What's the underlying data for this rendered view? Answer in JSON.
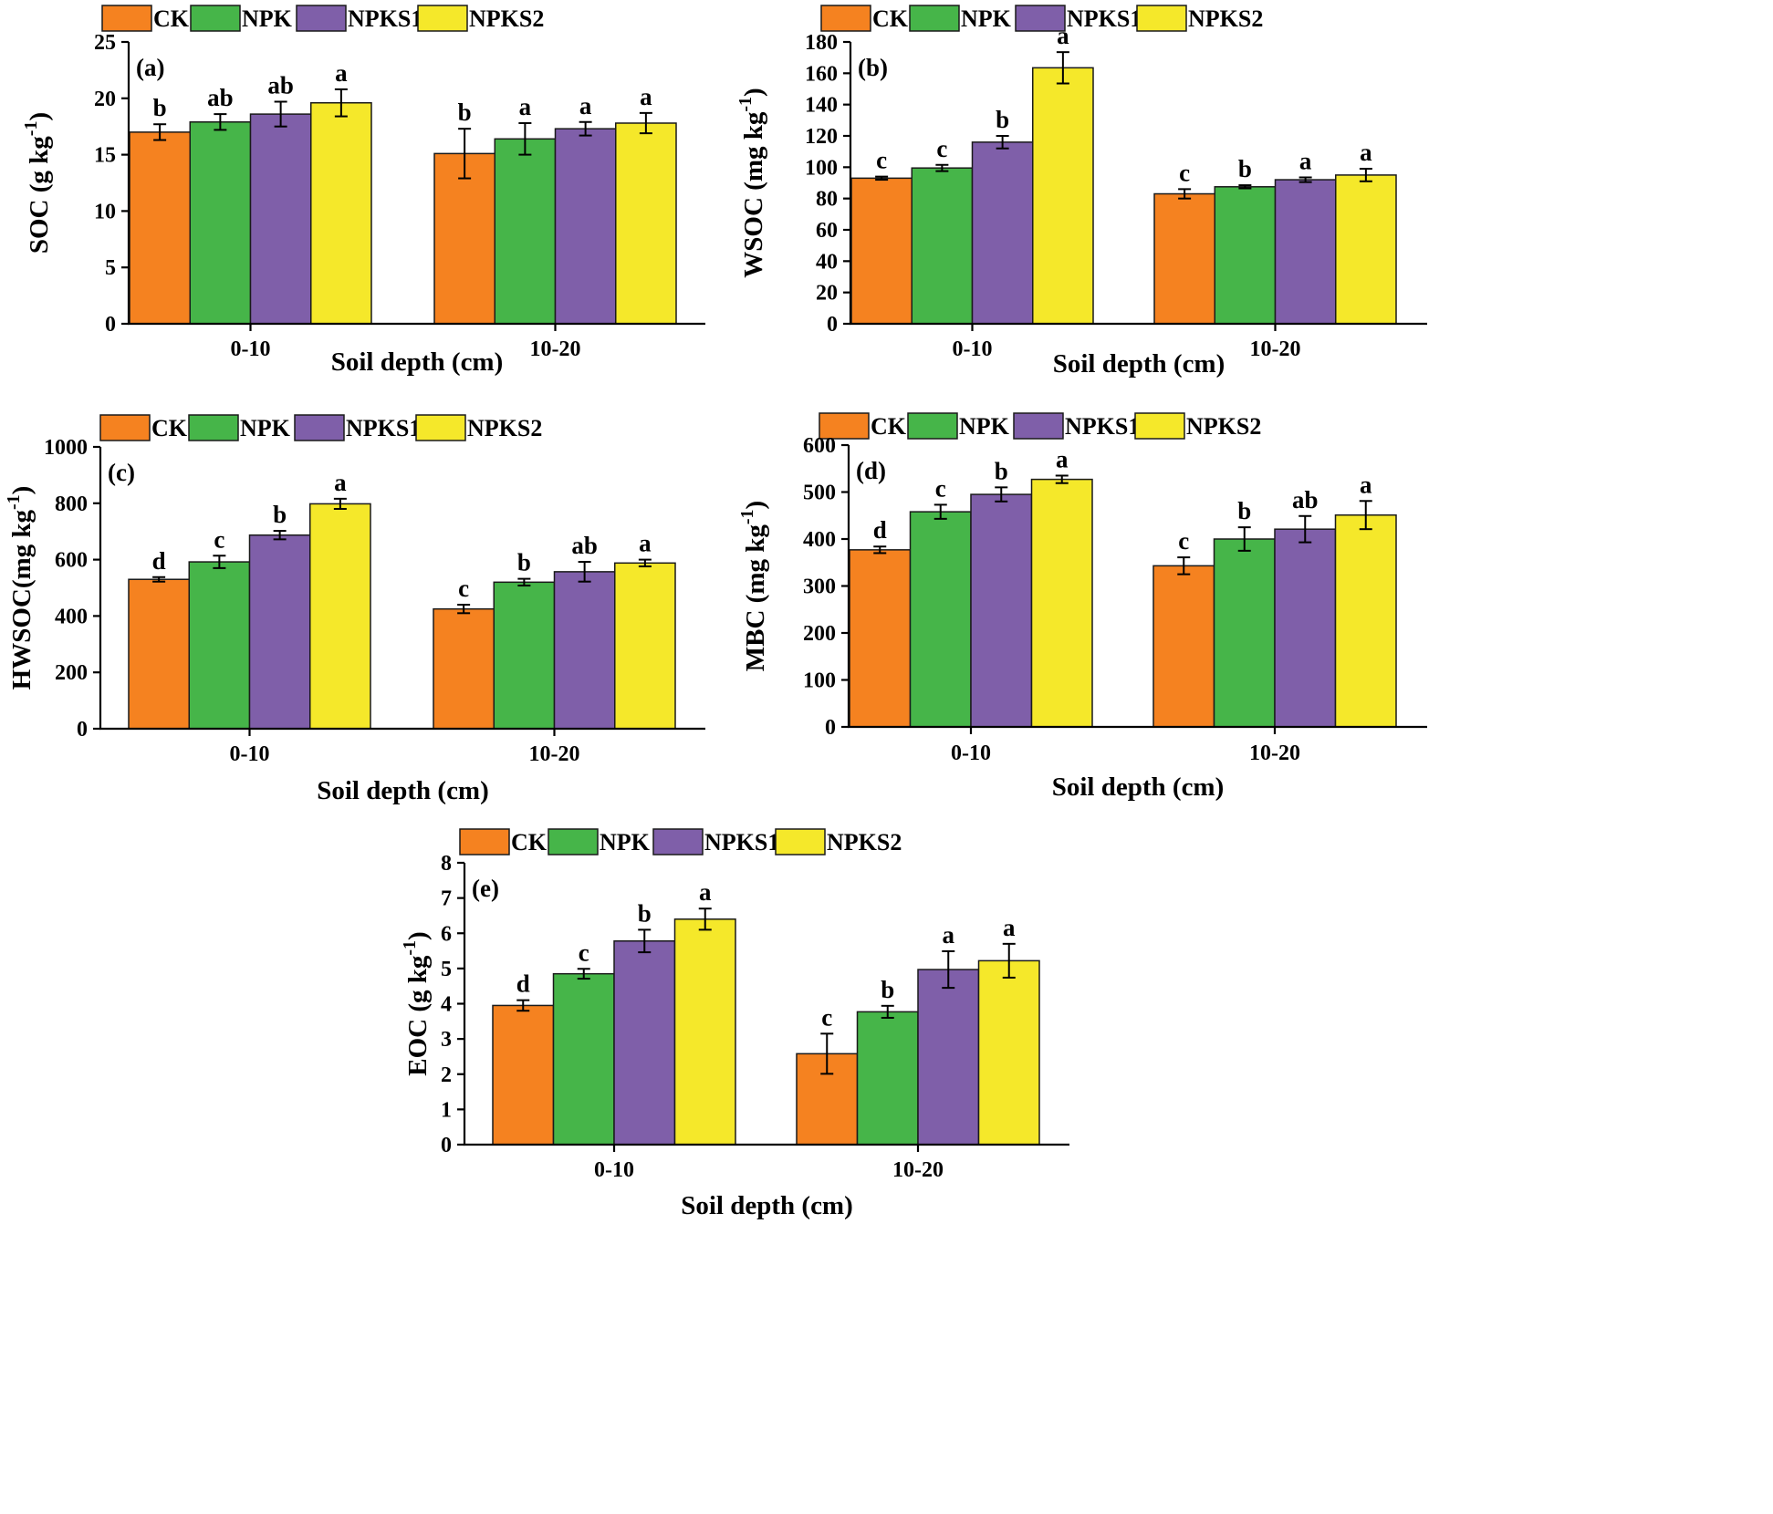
{
  "figure": {
    "colors": {
      "CK": "#f58220",
      "NPK": "#46b549",
      "NPKS1": "#7f5fa9",
      "NPKS2": "#f5e82a",
      "outline": "#1a1a1a"
    }
  },
  "chart_data": [
    {
      "type": "bar",
      "panel_label": "(a)",
      "ylabel_main": "SOC (g kg",
      "ylabel_sup": "-1",
      "ylabel_close": ")",
      "xlabel": "Soil depth (cm)",
      "categories": [
        "0-10",
        "10-20"
      ],
      "ylim": [
        0,
        25
      ],
      "yticks": [
        0,
        5,
        10,
        15,
        20,
        25
      ],
      "legend": [
        "CK",
        "NPK",
        "NPKS1",
        "NPKS2"
      ],
      "series": [
        {
          "name": "CK",
          "values": [
            17.0,
            15.1
          ],
          "errors": [
            0.7,
            2.2
          ],
          "letters": [
            "b",
            "b"
          ]
        },
        {
          "name": "NPK",
          "values": [
            17.9,
            16.4
          ],
          "errors": [
            0.7,
            1.4
          ],
          "letters": [
            "ab",
            "a"
          ]
        },
        {
          "name": "NPKS1",
          "values": [
            18.6,
            17.3
          ],
          "errors": [
            1.1,
            0.6
          ],
          "letters": [
            "ab",
            "a"
          ]
        },
        {
          "name": "NPKS2",
          "values": [
            19.6,
            17.8
          ],
          "errors": [
            1.2,
            0.9
          ],
          "letters": [
            "a",
            "a"
          ]
        }
      ]
    },
    {
      "type": "bar",
      "panel_label": "(b)",
      "ylabel_main": "WSOC (mg kg",
      "ylabel_sup": "-1",
      "ylabel_close": ")",
      "xlabel": "Soil depth (cm)",
      "categories": [
        "0-10",
        "10-20"
      ],
      "ylim": [
        0,
        180
      ],
      "yticks": [
        0,
        20,
        40,
        60,
        80,
        100,
        120,
        140,
        160,
        180
      ],
      "legend": [
        "CK",
        "NPK",
        "NPKS1",
        "NPKS2"
      ],
      "series": [
        {
          "name": "CK",
          "values": [
            93,
            83
          ],
          "errors": [
            1,
            3
          ],
          "letters": [
            "c",
            "c"
          ]
        },
        {
          "name": "NPK",
          "values": [
            99.5,
            87.5
          ],
          "errors": [
            2,
            1
          ],
          "letters": [
            "c",
            "b"
          ]
        },
        {
          "name": "NPKS1",
          "values": [
            116,
            92
          ],
          "errors": [
            4,
            1.5
          ],
          "letters": [
            "b",
            "a"
          ]
        },
        {
          "name": "NPKS2",
          "values": [
            163.5,
            95
          ],
          "errors": [
            10,
            4
          ],
          "letters": [
            "a",
            "a"
          ]
        }
      ]
    },
    {
      "type": "bar",
      "panel_label": "(c)",
      "ylabel_main": "HWSOC(mg kg",
      "ylabel_sup": "-1",
      "ylabel_close": ")",
      "xlabel": "Soil depth (cm)",
      "categories": [
        "0-10",
        "10-20"
      ],
      "ylim": [
        0,
        1000
      ],
      "yticks": [
        0,
        200,
        400,
        600,
        800,
        1000
      ],
      "legend": [
        "CK",
        "NPK",
        "NPKS1",
        "NPKS2"
      ],
      "series": [
        {
          "name": "CK",
          "values": [
            530,
            425
          ],
          "errors": [
            8,
            15
          ],
          "letters": [
            "d",
            "c"
          ]
        },
        {
          "name": "NPK",
          "values": [
            592,
            520
          ],
          "errors": [
            22,
            12
          ],
          "letters": [
            "c",
            "b"
          ]
        },
        {
          "name": "NPKS1",
          "values": [
            687,
            557
          ],
          "errors": [
            15,
            35
          ],
          "letters": [
            "b",
            "ab"
          ]
        },
        {
          "name": "NPKS2",
          "values": [
            798,
            588
          ],
          "errors": [
            18,
            12
          ],
          "letters": [
            "a",
            "a"
          ]
        }
      ]
    },
    {
      "type": "bar",
      "panel_label": "(d)",
      "ylabel_main": "MBC (mg kg",
      "ylabel_sup": "-1",
      "ylabel_close": ")",
      "xlabel": "Soil depth (cm)",
      "categories": [
        "0-10",
        "10-20"
      ],
      "ylim": [
        0,
        600
      ],
      "yticks": [
        0,
        100,
        200,
        300,
        400,
        500,
        600
      ],
      "legend": [
        "CK",
        "NPK",
        "NPKS1",
        "NPKS2"
      ],
      "series": [
        {
          "name": "CK",
          "values": [
            377,
            343
          ],
          "errors": [
            7,
            18
          ],
          "letters": [
            "d",
            "c"
          ]
        },
        {
          "name": "NPK",
          "values": [
            458,
            400
          ],
          "errors": [
            15,
            25
          ],
          "letters": [
            "c",
            "b"
          ]
        },
        {
          "name": "NPKS1",
          "values": [
            495,
            421
          ],
          "errors": [
            15,
            28
          ],
          "letters": [
            "b",
            "ab"
          ]
        },
        {
          "name": "NPKS2",
          "values": [
            527,
            451
          ],
          "errors": [
            8,
            30
          ],
          "letters": [
            "a",
            "a"
          ]
        }
      ]
    },
    {
      "type": "bar",
      "panel_label": "(e)",
      "ylabel_main": "EOC (g kg",
      "ylabel_sup": "-1",
      "ylabel_close": ")",
      "xlabel": "Soil depth (cm)",
      "categories": [
        "0-10",
        "10-20"
      ],
      "ylim": [
        0,
        8
      ],
      "yticks": [
        0,
        1,
        2,
        3,
        4,
        5,
        6,
        7,
        8
      ],
      "legend": [
        "CK",
        "NPK",
        "NPKS1",
        "NPKS2"
      ],
      "series": [
        {
          "name": "CK",
          "values": [
            3.95,
            2.58
          ],
          "errors": [
            0.15,
            0.57
          ],
          "letters": [
            "d",
            "c"
          ]
        },
        {
          "name": "NPK",
          "values": [
            4.85,
            3.77
          ],
          "errors": [
            0.14,
            0.17
          ],
          "letters": [
            "c",
            "b"
          ]
        },
        {
          "name": "NPKS1",
          "values": [
            5.78,
            4.97
          ],
          "errors": [
            0.32,
            0.52
          ],
          "letters": [
            "b",
            "a"
          ]
        },
        {
          "name": "NPKS2",
          "values": [
            6.4,
            5.22
          ],
          "errors": [
            0.3,
            0.48
          ],
          "letters": [
            "a",
            "a"
          ]
        }
      ]
    }
  ]
}
